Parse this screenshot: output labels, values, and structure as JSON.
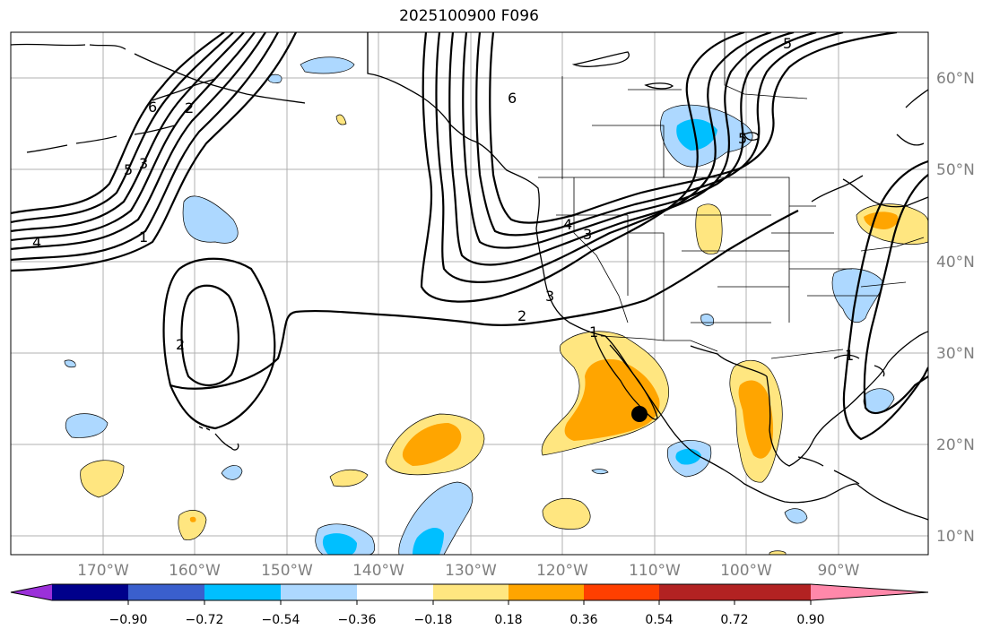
{
  "title": "2025100900 F096",
  "latitude_labels": [
    "60°N",
    "50°N",
    "40°N",
    "30°N",
    "20°N",
    "10°N"
  ],
  "longitude_labels": [
    "170°W",
    "160°W",
    "150°W",
    "140°W",
    "130°W",
    "120°W",
    "110°W",
    "100°W",
    "90°W"
  ],
  "contour_labels": [
    "4",
    "5",
    "3",
    "6",
    "2",
    "1",
    "2",
    "6",
    "5",
    "4",
    "3",
    "3",
    "2",
    "1",
    "5",
    "1"
  ],
  "colorbar": {
    "tick_labels": [
      "−0.90",
      "−0.72",
      "−0.54",
      "−0.36",
      "−0.18",
      "0.18",
      "0.36",
      "0.54",
      "0.72",
      "0.90"
    ],
    "colors": [
      "#9b30d9",
      "#00008b",
      "#3a5fcd",
      "#00bfff",
      "#add8ff",
      "#ffffff",
      "#ffe680",
      "#ffa500",
      "#ff3f00",
      "#b22222",
      "#ff88aa"
    ]
  },
  "marker": "black-dot"
}
